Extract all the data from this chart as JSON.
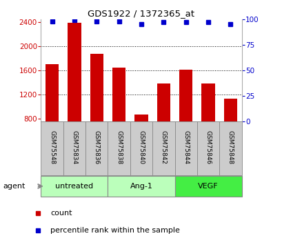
{
  "title": "GDS1922 / 1372365_at",
  "samples": [
    "GSM75548",
    "GSM75834",
    "GSM75836",
    "GSM75838",
    "GSM75840",
    "GSM75842",
    "GSM75844",
    "GSM75846",
    "GSM75848"
  ],
  "counts": [
    1700,
    2390,
    1870,
    1640,
    860,
    1380,
    1610,
    1380,
    1130
  ],
  "percentiles": [
    98,
    99,
    98,
    98,
    95,
    97,
    97,
    97,
    95
  ],
  "ylim_left": [
    750,
    2450
  ],
  "ylim_right": [
    0,
    100
  ],
  "yticks_left": [
    800,
    1200,
    1600,
    2000,
    2400
  ],
  "yticks_right": [
    0,
    25,
    50,
    75,
    100
  ],
  "bar_color": "#cc0000",
  "dot_color": "#0000cc",
  "background_color": "#ffffff",
  "sample_box_color": "#cccccc",
  "group_configs": [
    {
      "label": "untreated",
      "start": 0,
      "end": 3,
      "color": "#bbffbb"
    },
    {
      "label": "Ang-1",
      "start": 3,
      "end": 6,
      "color": "#bbffbb"
    },
    {
      "label": "VEGF",
      "start": 6,
      "end": 9,
      "color": "#44ee44"
    }
  ],
  "legend_items": [
    "count",
    "percentile rank within the sample"
  ]
}
